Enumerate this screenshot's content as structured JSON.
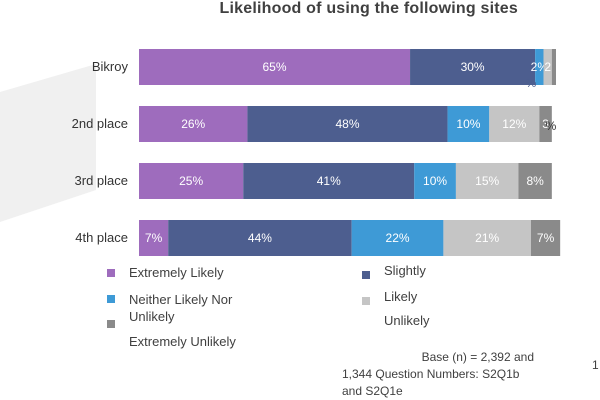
{
  "chart_data": {
    "type": "bar",
    "orientation": "horizontal",
    "stacked": true,
    "title": "Likelihood of using the following sites",
    "categories": [
      "Bikroy",
      "2nd place",
      "3rd place",
      "4th place"
    ],
    "series": [
      {
        "name": "Extremely Likely",
        "color": "#9e6cbd",
        "values": [
          65,
          26,
          25,
          7
        ],
        "labels": [
          "65%",
          "26%",
          "25%",
          "7%"
        ]
      },
      {
        "name": "Slightly",
        "color": "#4d5e8f",
        "values": [
          30,
          48,
          41,
          44
        ],
        "labels": [
          "30%",
          "48%",
          "41%",
          "44%"
        ]
      },
      {
        "name": "Neither Likely Nor Unlikely",
        "color": "#3e9ad6",
        "values": [
          2,
          10,
          10,
          22
        ],
        "labels": [
          "2%",
          "10%",
          "10%",
          "22%"
        ]
      },
      {
        "name": "Likely",
        "color": "#c5c5c5",
        "values": [
          2,
          12,
          15,
          21
        ],
        "labels": [
          "2",
          "12%",
          "15%",
          "21%"
        ]
      },
      {
        "name": "Unlikely",
        "color": "#8a8a8a",
        "values": [
          1,
          3,
          8,
          7
        ],
        "labels": [
          "",
          "3",
          "8%",
          "7%"
        ]
      }
    ],
    "extra_labels": {
      "bikroy_neither_wrap": "%",
      "second_place_unlikely": "%"
    },
    "xlim": [
      0,
      100
    ]
  },
  "legend": [
    {
      "label": "Extremely Likely",
      "color": "#9e6cbd"
    },
    {
      "label": "Slightly",
      "color": "#4d5e8f"
    },
    {
      "label": "Neither Likely Nor",
      "color": "#3e9ad6"
    },
    {
      "label": "Unlikely",
      "color": "#8a8a8a"
    },
    {
      "label": "Likely",
      "color": ""
    },
    {
      "label": "Unlikely",
      "color": ""
    },
    {
      "label": "Extremely Unlikely",
      "color": ""
    }
  ],
  "base_note": {
    "line1": "Base (n) = 2,392 and",
    "line2": "1,344  Question Numbers: S2Q1b",
    "line3": "and S2Q1e"
  },
  "page_number": "1"
}
